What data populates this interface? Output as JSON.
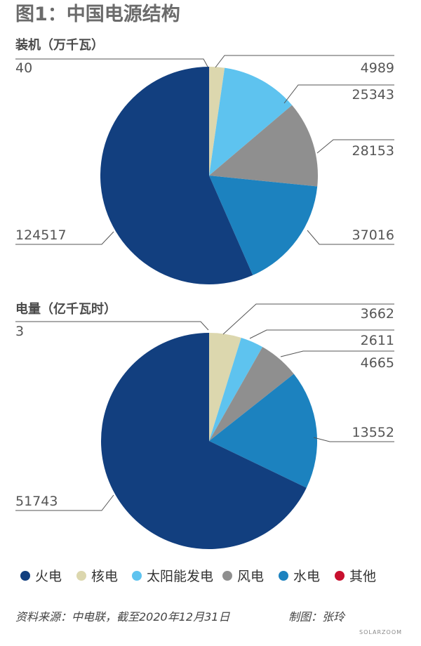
{
  "figure": {
    "title": "图1：中国电源结构",
    "source": "资料来源：中电联，截至2020年12月31日",
    "credit": "制图：张玲",
    "watermark": "SOLARZOOM"
  },
  "colors": {
    "火电": "#123f7f",
    "核电": "#dcd7ae",
    "太阳能发电": "#5ec3ef",
    "风电": "#8f8f8f",
    "水电": "#1c82bf",
    "其他": "#c8102e"
  },
  "legend": {
    "position": "bottom",
    "items": [
      "火电",
      "核电",
      "太阳能发电",
      "风电",
      "水电",
      "其他"
    ]
  },
  "chart_data": [
    {
      "type": "pie",
      "title": "装机（万千瓦）",
      "labels": [
        "其他",
        "核电",
        "太阳能发电",
        "风电",
        "水电",
        "火电"
      ],
      "values": [
        40,
        4989,
        25343,
        28153,
        37016,
        124517
      ]
    },
    {
      "type": "pie",
      "title": "电量（亿千瓦时）",
      "labels": [
        "其他",
        "核电",
        "太阳能发电",
        "风电",
        "水电",
        "火电"
      ],
      "values": [
        3,
        3662,
        2611,
        4665,
        13552,
        51743
      ]
    }
  ]
}
